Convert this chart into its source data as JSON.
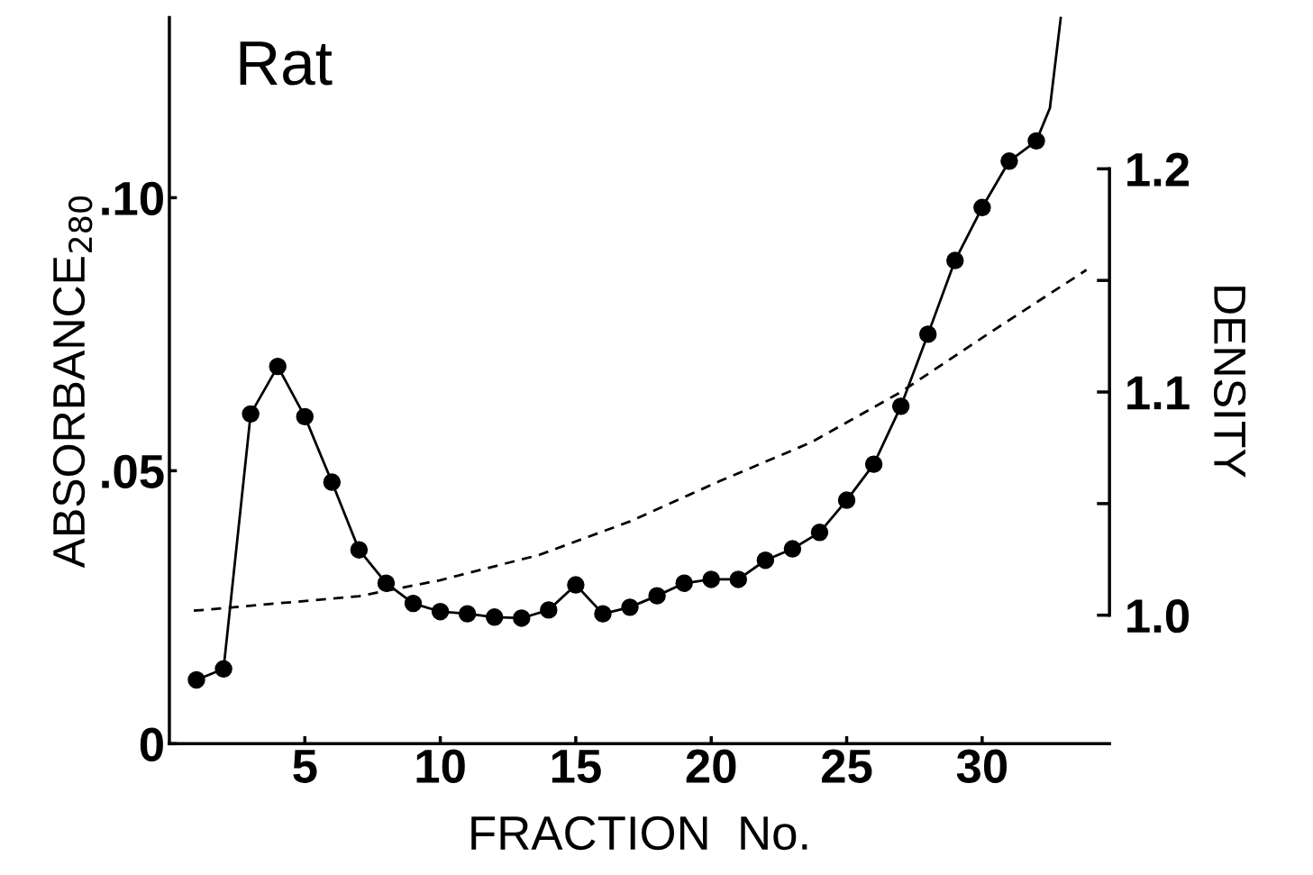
{
  "chart_data": {
    "type": "line",
    "title": "Rat",
    "xlabel": "FRACTION  No.",
    "ylabel": "ABSORBANCE$_{280}$",
    "y2label": "DENSITY",
    "xlim": [
      0,
      34.7
    ],
    "xticks": [
      5,
      10,
      15,
      20,
      25,
      30
    ],
    "ylim": [
      0,
      0.133
    ],
    "yticks": [
      {
        "value": 0,
        "label": "0"
      },
      {
        "value": 0.05,
        "label": ".05"
      },
      {
        "value": 0.1,
        "label": ".10"
      }
    ],
    "y2lim": [
      0.9424,
      1.2678
    ],
    "y2ticks": [
      {
        "value": 1.0,
        "label": "1.0"
      },
      {
        "value": 1.05,
        "label": null
      },
      1.1,
      {
        "value": 1.15,
        "label": null
      },
      1.2
    ],
    "grid": false,
    "legend": false,
    "series": [
      {
        "color": "#000000",
        "marker": "circle",
        "line_style": "solid",
        "x": [
          1,
          2,
          3,
          4,
          5,
          6,
          7,
          8,
          9,
          10,
          11,
          12,
          13,
          14,
          15,
          16,
          17,
          18,
          19,
          20,
          21,
          22,
          23,
          24,
          25,
          26,
          27,
          28,
          29,
          30,
          31,
          32
        ],
        "values": [
          0.0117,
          0.0137,
          0.0604,
          0.0691,
          0.0599,
          0.0479,
          0.0355,
          0.0294,
          0.0257,
          0.0242,
          0.0238,
          0.0232,
          0.023,
          0.0245,
          0.0291,
          0.0238,
          0.025,
          0.0271,
          0.0294,
          0.0301,
          0.0301,
          0.0336,
          0.0357,
          0.0387,
          0.0446,
          0.0512,
          0.0618,
          0.075,
          0.0885,
          0.0982,
          0.1067,
          0.1104
        ]
      },
      {
        "color": "#000000",
        "marker": "none",
        "line_style": "solid",
        "x": [
          32,
          32.5,
          32.9
        ],
        "values": [
          0.1104,
          0.1164,
          0.1329
        ]
      },
      {
        "axis": "y2",
        "color": "#000000",
        "marker": "none",
        "line_style": "dashed",
        "x": [
          0.9,
          7.0,
          10,
          13.65,
          17,
          20.3,
          23.7,
          27,
          30.3,
          33.85
        ],
        "values": [
          1.002,
          1.0085,
          1.0157,
          1.027,
          1.042,
          1.06,
          1.0775,
          1.1,
          1.1267,
          1.1547
        ]
      }
    ]
  }
}
